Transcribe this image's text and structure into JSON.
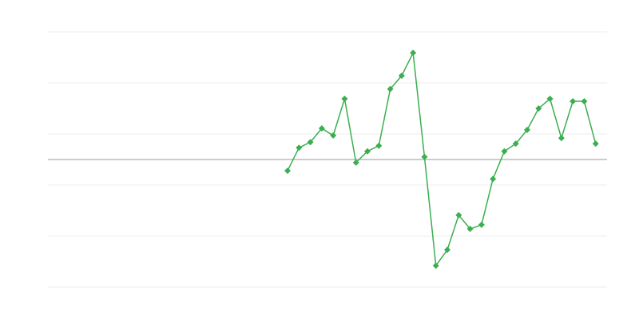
{
  "chart_data": {
    "type": "line",
    "categories": [
      null,
      null,
      null,
      null,
      null,
      null,
      null,
      null,
      null,
      null,
      null,
      null,
      null,
      null,
      null,
      null,
      null,
      null,
      null,
      null,
      null,
      null,
      null,
      null,
      null,
      null,
      null,
      null,
      null,
      null,
      null,
      null,
      null,
      null,
      null,
      null,
      null,
      null,
      null,
      null,
      null,
      null,
      null,
      null,
      null,
      null,
      null,
      null,
      null,
      null
    ],
    "series": [
      {
        "color": "#3aaf4f",
        "values": [
          null,
          null,
          null,
          null,
          null,
          null,
          null,
          null,
          null,
          null,
          null,
          null,
          null,
          null,
          null,
          null,
          null,
          null,
          null,
          null,
          null,
          -0.22,
          0.23,
          0.34,
          0.61,
          0.47,
          1.19,
          -0.06,
          0.16,
          0.27,
          1.38,
          1.64,
          2.09,
          0.05,
          -2.08,
          -1.77,
          -1.09,
          -1.36,
          -1.28,
          -0.38,
          0.16,
          0.31,
          0.58,
          1.0,
          1.19,
          0.42,
          1.14,
          1.14,
          0.31,
          null
        ]
      }
    ],
    "ylim": [
      -2.5,
      2.5
    ],
    "yticks": [
      -2.5,
      -1.5,
      -0.5,
      0.5,
      1.5,
      2.5
    ],
    "grid": true,
    "zero_line": true
  }
}
